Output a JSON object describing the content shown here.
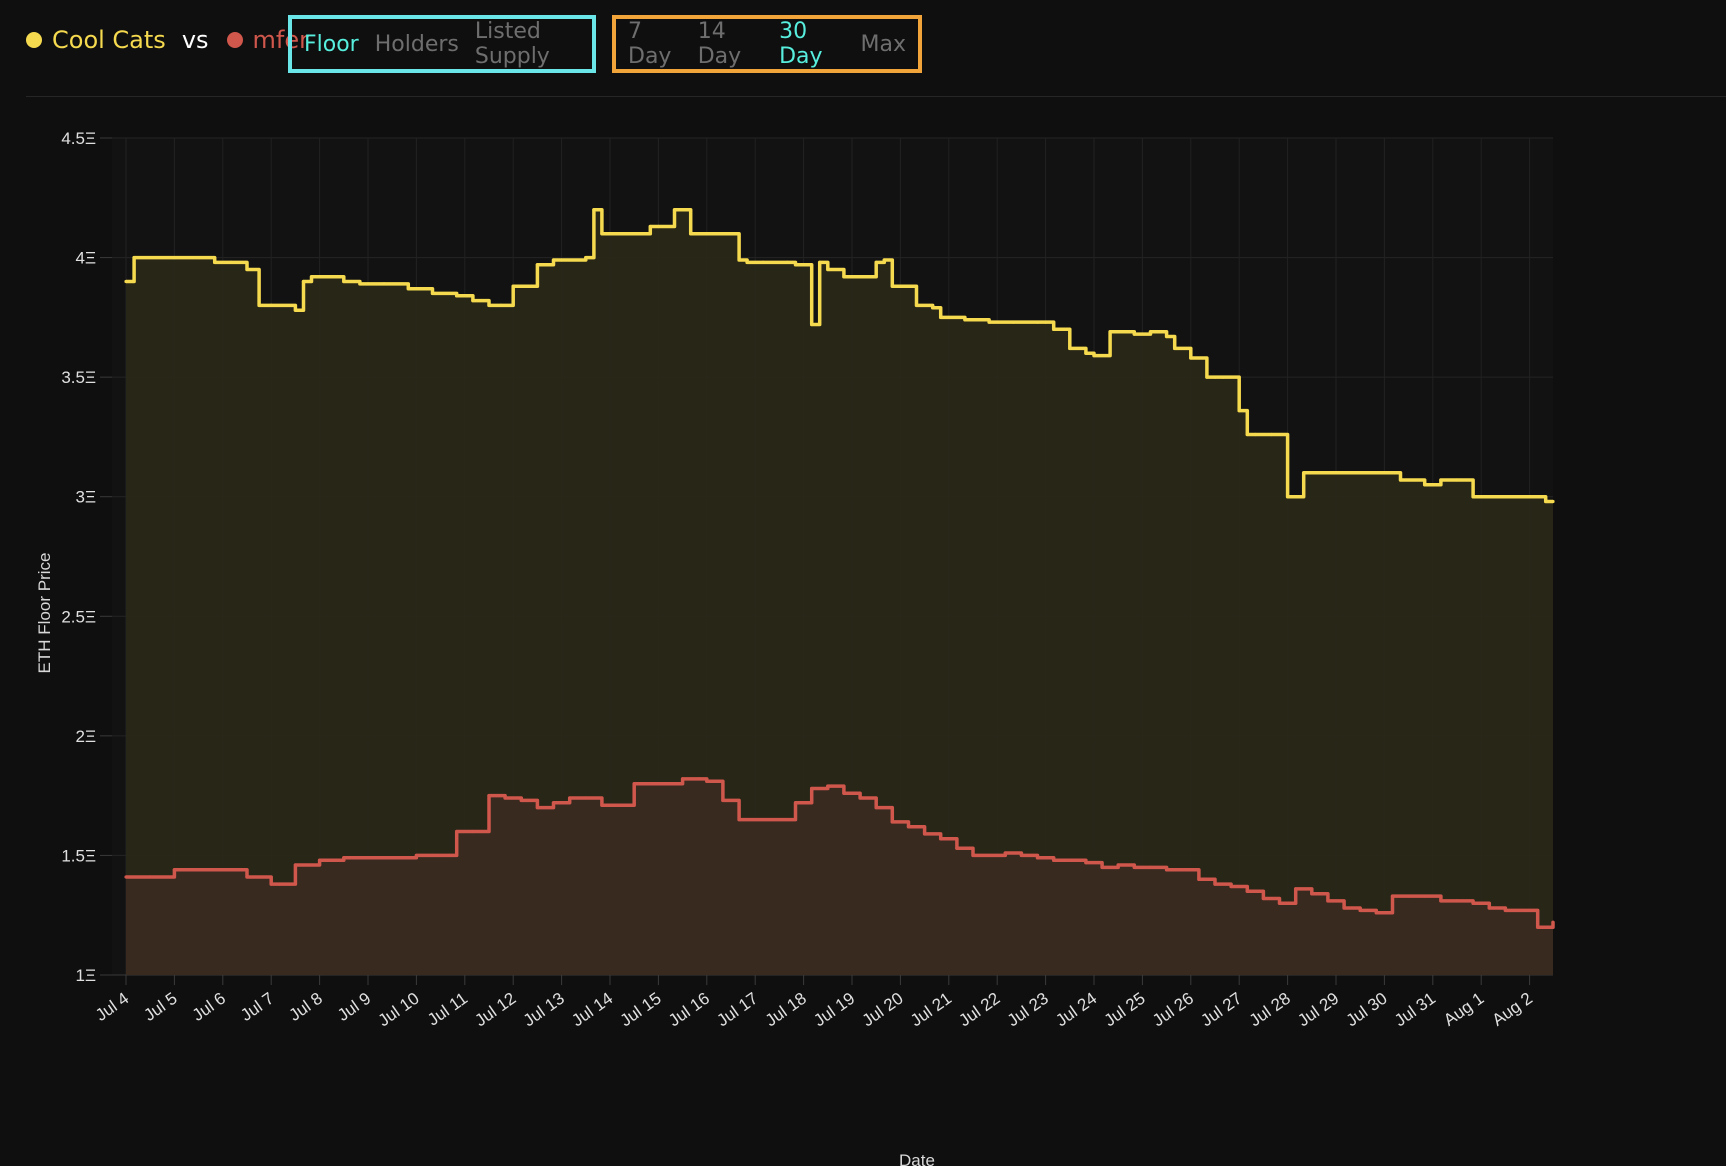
{
  "legend": {
    "series_a": {
      "label": "Cool Cats",
      "color": "#f5d94e"
    },
    "vs": "vs",
    "series_b": {
      "label": "mfer",
      "color": "#d0574c"
    }
  },
  "metric_tabs": {
    "border_color": "#6ae5e8",
    "items": [
      {
        "label": "Floor",
        "active": true
      },
      {
        "label": "Holders",
        "active": false
      },
      {
        "label": "Listed Supply",
        "active": false
      }
    ]
  },
  "range_tabs": {
    "border_color": "#f0a43a",
    "items": [
      {
        "label": "7 Day",
        "active": false
      },
      {
        "label": "14 Day",
        "active": false
      },
      {
        "label": "30 Day",
        "active": true
      },
      {
        "label": "Max",
        "active": false
      }
    ]
  },
  "chart_data": {
    "type": "area",
    "ylabel": "ETH Floor Price",
    "xlabel": "Date",
    "ylim": [
      1,
      4.5
    ],
    "y_ticks": [
      "1Ξ",
      "1.5Ξ",
      "2Ξ",
      "2.5Ξ",
      "3Ξ",
      "3.5Ξ",
      "4Ξ",
      "4.5Ξ"
    ],
    "y_tick_values": [
      1,
      1.5,
      2,
      2.5,
      3,
      3.5,
      4,
      4.5
    ],
    "x_ticks": [
      "Jul 4",
      "Jul 5",
      "Jul 6",
      "Jul 7",
      "Jul 8",
      "Jul 9",
      "Jul 10",
      "Jul 11",
      "Jul 12",
      "Jul 13",
      "Jul 14",
      "Jul 15",
      "Jul 16",
      "Jul 17",
      "Jul 18",
      "Jul 19",
      "Jul 20",
      "Jul 21",
      "Jul 22",
      "Jul 23",
      "Jul 24",
      "Jul 25",
      "Jul 26",
      "Jul 27",
      "Jul 28",
      "Jul 29",
      "Jul 30",
      "Jul 31",
      "Aug 1",
      "Aug 2"
    ],
    "grid": true,
    "series": [
      {
        "name": "Cool Cats",
        "color": "#f5d94e",
        "fill": "#2a2818",
        "x": [
          "Jul 4 00:00",
          "Jul 4 04:00",
          "Jul 5 00:00",
          "Jul 5 12:00",
          "Jul 5 20:00",
          "Jul 6 04:00",
          "Jul 6 12:00",
          "Jul 6 18:00",
          "Jul 7 00:00",
          "Jul 7 12:00",
          "Jul 7 16:00",
          "Jul 7 20:00",
          "Jul 8 04:00",
          "Jul 8 12:00",
          "Jul 8 20:00",
          "Jul 9 08:00",
          "Jul 9 20:00",
          "Jul 10 08:00",
          "Jul 10 20:00",
          "Jul 11 04:00",
          "Jul 11 12:00",
          "Jul 11 18:00",
          "Jul 12 00:00",
          "Jul 12 12:00",
          "Jul 12 20:00",
          "Jul 13 00:00",
          "Jul 13 12:00",
          "Jul 13 16:00",
          "Jul 13 20:00",
          "Jul 14 08:00",
          "Jul 14 12:00",
          "Jul 14 20:00",
          "Jul 15 00:00",
          "Jul 15 08:00",
          "Jul 15 12:00",
          "Jul 15 16:00",
          "Jul 15 20:00",
          "Jul 16 08:00",
          "Jul 16 16:00",
          "Jul 16 20:00",
          "Jul 17 04:00",
          "Jul 17 16:00",
          "Jul 17 20:00",
          "Jul 18 04:00",
          "Jul 18 08:00",
          "Jul 18 12:00",
          "Jul 18 20:00",
          "Jul 19 04:00",
          "Jul 19 12:00",
          "Jul 19 16:00",
          "Jul 19 20:00",
          "Jul 20 08:00",
          "Jul 20 16:00",
          "Jul 20 20:00",
          "Jul 21 08:00",
          "Jul 21 20:00",
          "Jul 22 08:00",
          "Jul 22 20:00",
          "Jul 23 00:00",
          "Jul 23 04:00",
          "Jul 23 12:00",
          "Jul 23 20:00",
          "Jul 24 00:00",
          "Jul 24 08:00",
          "Jul 24 20:00",
          "Jul 25 04:00",
          "Jul 25 12:00",
          "Jul 25 16:00",
          "Jul 26 00:00",
          "Jul 26 08:00",
          "Jul 26 12:00",
          "Jul 26 16:00",
          "Jul 27 00:00",
          "Jul 27 04:00",
          "Jul 27 08:00",
          "Jul 27 16:00",
          "Jul 28 00:00",
          "Jul 28 08:00",
          "Jul 28 16:00",
          "Jul 29 00:00",
          "Jul 29 12:00",
          "Jul 29 20:00",
          "Jul 30 08:00",
          "Jul 30 20:00",
          "Jul 31 04:00",
          "Jul 31 12:00",
          "Jul 31 20:00",
          "Aug 1 00:00",
          "Aug 1 12:00",
          "Aug 2 00:00",
          "Aug 2 08:00",
          "Aug 2 20:00"
        ],
        "values": [
          3.9,
          4.0,
          4.0,
          4.0,
          3.98,
          3.98,
          3.95,
          3.8,
          3.8,
          3.78,
          3.9,
          3.92,
          3.92,
          3.9,
          3.89,
          3.89,
          3.87,
          3.85,
          3.84,
          3.82,
          3.8,
          3.8,
          3.88,
          3.97,
          3.99,
          3.99,
          4.0,
          4.2,
          4.1,
          4.1,
          4.1,
          4.13,
          4.13,
          4.2,
          4.2,
          4.1,
          4.1,
          4.1,
          3.99,
          3.98,
          3.98,
          3.98,
          3.97,
          3.72,
          3.98,
          3.95,
          3.92,
          3.92,
          3.98,
          3.99,
          3.88,
          3.8,
          3.79,
          3.75,
          3.74,
          3.73,
          3.73,
          3.73,
          3.73,
          3.7,
          3.62,
          3.6,
          3.59,
          3.69,
          3.68,
          3.69,
          3.67,
          3.62,
          3.58,
          3.5,
          3.5,
          3.5,
          3.36,
          3.26,
          3.26,
          3.26,
          3.0,
          3.1,
          3.1,
          3.1,
          3.1,
          3.1,
          3.07,
          3.05,
          3.07,
          3.07,
          3.0,
          3.0,
          3.0,
          3.0,
          2.98,
          2.98
        ]
      },
      {
        "name": "mfer",
        "color": "#d0574c",
        "fill": "#3a2a21",
        "x": [
          "Jul 4 00:00",
          "Jul 4 12:00",
          "Jul 5 00:00",
          "Jul 5 12:00",
          "Jul 6 00:00",
          "Jul 6 12:00",
          "Jul 7 00:00",
          "Jul 7 04:00",
          "Jul 7 12:00",
          "Jul 8 00:00",
          "Jul 8 12:00",
          "Jul 9 00:00",
          "Jul 9 12:00",
          "Jul 10 00:00",
          "Jul 10 08:00",
          "Jul 10 12:00",
          "Jul 10 20:00",
          "Jul 11 04:00",
          "Jul 11 12:00",
          "Jul 11 20:00",
          "Jul 12 04:00",
          "Jul 12 12:00",
          "Jul 12 20:00",
          "Jul 13 04:00",
          "Jul 13 12:00",
          "Jul 13 20:00",
          "Jul 14 04:00",
          "Jul 14 12:00",
          "Jul 14 20:00",
          "Jul 15 04:00",
          "Jul 15 12:00",
          "Jul 15 20:00",
          "Jul 16 00:00",
          "Jul 16 08:00",
          "Jul 16 16:00",
          "Jul 17 00:00",
          "Jul 17 08:00",
          "Jul 17 16:00",
          "Jul 17 20:00",
          "Jul 18 04:00",
          "Jul 18 12:00",
          "Jul 18 20:00",
          "Jul 19 04:00",
          "Jul 19 12:00",
          "Jul 19 20:00",
          "Jul 20 04:00",
          "Jul 20 12:00",
          "Jul 20 20:00",
          "Jul 21 04:00",
          "Jul 21 12:00",
          "Jul 21 20:00",
          "Jul 22 04:00",
          "Jul 22 12:00",
          "Jul 22 20:00",
          "Jul 23 04:00",
          "Jul 23 12:00",
          "Jul 23 20:00",
          "Jul 24 04:00",
          "Jul 24 12:00",
          "Jul 24 20:00",
          "Jul 25 04:00",
          "Jul 25 12:00",
          "Jul 25 20:00",
          "Jul 26 04:00",
          "Jul 26 12:00",
          "Jul 26 20:00",
          "Jul 27 04:00",
          "Jul 27 12:00",
          "Jul 27 20:00",
          "Jul 28 04:00",
          "Jul 28 12:00",
          "Jul 28 20:00",
          "Jul 29 04:00",
          "Jul 29 12:00",
          "Jul 29 20:00",
          "Jul 30 04:00",
          "Jul 30 12:00",
          "Jul 30 20:00",
          "Jul 31 04:00",
          "Jul 31 12:00",
          "Jul 31 20:00",
          "Aug 1 04:00",
          "Aug 1 12:00",
          "Aug 1 20:00",
          "Aug 2 04:00",
          "Aug 2 12:00",
          "Aug 2 20:00"
        ],
        "values": [
          1.41,
          1.41,
          1.44,
          1.44,
          1.44,
          1.41,
          1.38,
          1.38,
          1.46,
          1.48,
          1.49,
          1.49,
          1.49,
          1.5,
          1.5,
          1.5,
          1.6,
          1.6,
          1.75,
          1.74,
          1.73,
          1.7,
          1.72,
          1.74,
          1.74,
          1.71,
          1.71,
          1.8,
          1.8,
          1.8,
          1.82,
          1.82,
          1.81,
          1.73,
          1.65,
          1.65,
          1.65,
          1.65,
          1.72,
          1.78,
          1.79,
          1.76,
          1.74,
          1.7,
          1.64,
          1.62,
          1.59,
          1.57,
          1.53,
          1.5,
          1.5,
          1.51,
          1.5,
          1.49,
          1.48,
          1.48,
          1.47,
          1.45,
          1.46,
          1.45,
          1.45,
          1.44,
          1.44,
          1.4,
          1.38,
          1.37,
          1.35,
          1.32,
          1.3,
          1.36,
          1.34,
          1.31,
          1.28,
          1.27,
          1.26,
          1.33,
          1.33,
          1.33,
          1.31,
          1.31,
          1.3,
          1.28,
          1.27,
          1.27,
          1.2,
          1.22,
          1.21
        ]
      }
    ]
  }
}
